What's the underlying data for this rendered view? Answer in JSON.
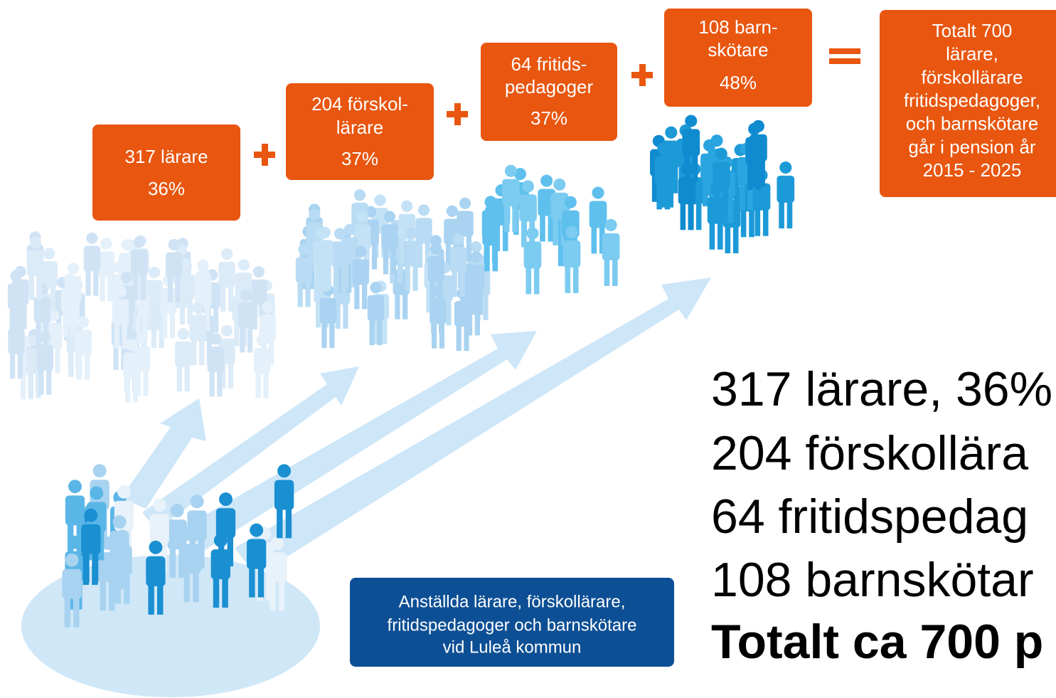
{
  "groups": [
    {
      "lines": [
        "317 lärare",
        "36%"
      ]
    },
    {
      "lines": [
        "204 förskol-",
        "lärare",
        "37%"
      ]
    },
    {
      "lines": [
        "64 fritids-",
        "pedagoger",
        "37%"
      ]
    },
    {
      "lines": [
        "108 barn-",
        "skötare",
        "48%"
      ]
    }
  ],
  "total": {
    "lines": [
      "Totalt 700",
      "lärare,",
      "förskollärare",
      "fritidspedagoger,",
      "och barnskötare",
      "går i pension år",
      "2015 - 2025"
    ]
  },
  "source": {
    "lines": [
      "Anställda lärare, förskollärare,",
      "fritidspedagoger och barnskötare",
      "vid Luleå kommun"
    ]
  },
  "summary": {
    "lines": [
      "317 lärare, 36%",
      "204 förskollära",
      "64 fritidspedag",
      "108 barnskötar"
    ],
    "total": "Totalt ca 700 p"
  }
}
